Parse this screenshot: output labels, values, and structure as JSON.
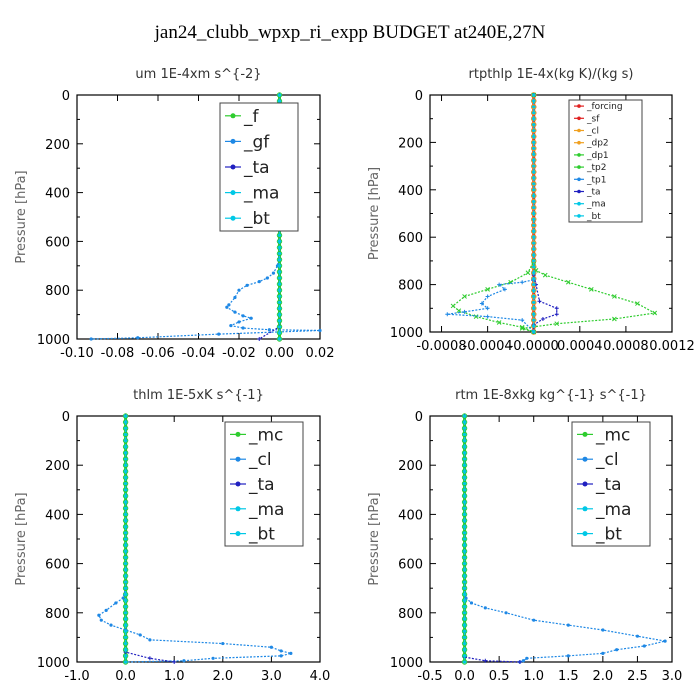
{
  "figure": {
    "title": "jan24_clubb_wpxp_ri_expp  BUDGET at240E,27N"
  },
  "colors": {
    "green": "#2ecc2e",
    "blue": "#1e88e5",
    "navy": "#2020c0",
    "cyan": "#00c8e6",
    "red": "#e02020",
    "orange": "#f0a020",
    "frame": "#000000"
  },
  "chart_data": [
    {
      "type": "line",
      "title": "um  1E-4xm s^{-2}",
      "ylabel": "Pressure [hPa]",
      "ylim": [
        1000,
        0
      ],
      "xlim": [
        -0.1,
        0.02
      ],
      "xticks": [
        "-0.10",
        "-0.08",
        "-0.06",
        "-0.04",
        "-0.02",
        "0.00",
        "0.02"
      ],
      "yticks": [
        "0",
        "200",
        "400",
        "600",
        "800",
        "1000"
      ],
      "legend": {
        "placement": "top-right",
        "entries": [
          "_f",
          "_gf",
          "_ta",
          "_ma",
          "_bt"
        ]
      },
      "series": [
        {
          "name": "_f",
          "color": "#2ecc2e",
          "points": [
            [
              0,
              0
            ],
            [
              0,
              1000
            ]
          ]
        },
        {
          "name": "_gf",
          "color": "#1e88e5",
          "points": [
            [
              0.0,
              0
            ],
            [
              0.0,
              150
            ],
            [
              0.0,
              300
            ],
            [
              0.0,
              450
            ],
            [
              0.0,
              550
            ],
            [
              0.0,
              600
            ],
            [
              0.0,
              650
            ],
            [
              -0.001,
              700
            ],
            [
              -0.003,
              730
            ],
            [
              -0.006,
              750
            ],
            [
              -0.01,
              765
            ],
            [
              -0.016,
              780
            ],
            [
              -0.02,
              800
            ],
            [
              -0.022,
              830
            ],
            [
              -0.025,
              860
            ],
            [
              -0.026,
              870
            ],
            [
              -0.022,
              890
            ],
            [
              -0.018,
              905
            ],
            [
              -0.014,
              915
            ],
            [
              -0.02,
              930
            ],
            [
              -0.024,
              945
            ],
            [
              -0.018,
              955
            ],
            [
              -0.005,
              962
            ],
            [
              0.02,
              965
            ],
            [
              -0.03,
              980
            ],
            [
              -0.07,
              995
            ],
            [
              -0.093,
              1000
            ]
          ]
        },
        {
          "name": "_ta",
          "color": "#2020c0",
          "points": [
            [
              0,
              0
            ],
            [
              0,
              950
            ],
            [
              -0.01,
              1000
            ]
          ]
        },
        {
          "name": "_ma",
          "color": "#00c8e6",
          "points": [
            [
              0,
              0
            ],
            [
              0,
              1000
            ]
          ]
        },
        {
          "name": "_bt",
          "color": "#00c8e6",
          "points": [
            [
              0,
              0
            ],
            [
              0,
              1000
            ]
          ]
        }
      ]
    },
    {
      "type": "line",
      "title": "rtpthlp  1E-4x(kg K)/(kg s)",
      "ylabel": "Pressure [hPa]",
      "ylim": [
        1000,
        0
      ],
      "xlim": [
        -0.0009,
        0.0012
      ],
      "xticks": [
        "-0.0008",
        "-0.0004",
        "-0.0000",
        "0.0004",
        "0.0008",
        "0.0012"
      ],
      "xtick_values": [
        -0.0008,
        -0.0004,
        0,
        0.0004,
        0.0008,
        0.0012
      ],
      "yticks": [
        "0",
        "200",
        "400",
        "600",
        "800",
        "1000"
      ],
      "legend": {
        "placement": "top-right",
        "entries": [
          "_forcing",
          "_sf",
          "_cl",
          "_dp2",
          "_dp1",
          "_tp2",
          "_tp1",
          "_ta",
          "_ma",
          "_bt"
        ]
      },
      "series": [
        {
          "name": "_forcing",
          "color": "#e02020",
          "points": [
            [
              0,
              0
            ],
            [
              0,
              1000
            ]
          ]
        },
        {
          "name": "_sf",
          "color": "#e02020",
          "points": [
            [
              0,
              0
            ],
            [
              0,
              1000
            ]
          ]
        },
        {
          "name": "_cl",
          "color": "#f0a020",
          "points": [
            [
              0,
              0
            ],
            [
              0,
              1000
            ]
          ]
        },
        {
          "name": "_dp2",
          "color": "#f0a020",
          "points": [
            [
              0,
              0
            ],
            [
              0,
              1000
            ]
          ]
        },
        {
          "name": "_dp1",
          "color": "#2ecc2e",
          "points": [
            [
              0,
              0
            ],
            [
              0,
              720
            ],
            [
              2e-05,
              740
            ],
            [
              0.0001,
              760
            ],
            [
              0.0003,
              790
            ],
            [
              0.0005,
              820
            ],
            [
              0.0007,
              850
            ],
            [
              0.0009,
              880
            ],
            [
              0.00105,
              920
            ],
            [
              0.0007,
              945
            ],
            [
              0.0002,
              965
            ],
            [
              -0.0001,
              985
            ],
            [
              0,
              1000
            ]
          ]
        },
        {
          "name": "_tp2",
          "color": "#2ecc2e",
          "points": [
            [
              0,
              0
            ],
            [
              0,
              700
            ],
            [
              -5e-05,
              750
            ],
            [
              -0.0002,
              790
            ],
            [
              -0.0004,
              820
            ],
            [
              -0.0006,
              850
            ],
            [
              -0.0007,
              890
            ],
            [
              -0.00065,
              910
            ],
            [
              -0.0005,
              935
            ],
            [
              -0.0003,
              960
            ],
            [
              -0.0001,
              980
            ],
            [
              0,
              1000
            ]
          ]
        },
        {
          "name": "_tp1",
          "color": "#1e88e5",
          "points": [
            [
              0,
              0
            ],
            [
              0,
              780
            ],
            [
              -0.0001,
              790
            ],
            [
              -0.0003,
              800
            ],
            [
              -0.00025,
              820
            ],
            [
              -0.0004,
              850
            ],
            [
              -0.00045,
              880
            ],
            [
              -0.0004,
              900
            ],
            [
              -0.0006,
              915
            ],
            [
              -0.00075,
              925
            ],
            [
              -0.0004,
              935
            ],
            [
              -0.0001,
              950
            ],
            [
              0,
              1000
            ]
          ]
        },
        {
          "name": "_ta",
          "color": "#2020c0",
          "points": [
            [
              0,
              0
            ],
            [
              0,
              760
            ],
            [
              2e-05,
              800
            ],
            [
              5e-05,
              870
            ],
            [
              0.0002,
              900
            ],
            [
              0.0002,
              925
            ],
            [
              8e-05,
              945
            ],
            [
              0,
              970
            ],
            [
              0,
              1000
            ]
          ]
        },
        {
          "name": "_ma",
          "color": "#00c8e6",
          "points": [
            [
              0,
              0
            ],
            [
              0,
              1000
            ]
          ]
        },
        {
          "name": "_bt",
          "color": "#00c8e6",
          "points": [
            [
              0,
              0
            ],
            [
              0,
              1000
            ]
          ]
        }
      ]
    },
    {
      "type": "line",
      "title": "thlm  1E-5xK s^{-1}",
      "ylabel": "Pressure [hPa]",
      "ylim": [
        1000,
        0
      ],
      "xlim": [
        -1.0,
        4.0
      ],
      "xticks": [
        "-1.0",
        "0.0",
        "1.0",
        "2.0",
        "3.0",
        "4.0"
      ],
      "yticks": [
        "0",
        "200",
        "400",
        "600",
        "800",
        "1000"
      ],
      "legend": {
        "placement": "top-right",
        "entries": [
          "_mc",
          "_cl",
          "_ta",
          "_ma",
          "_bt"
        ]
      },
      "series": [
        {
          "name": "_mc",
          "color": "#2ecc2e",
          "points": [
            [
              0,
              0
            ],
            [
              0,
              1000
            ]
          ]
        },
        {
          "name": "_cl",
          "color": "#1e88e5",
          "points": [
            [
              0,
              0
            ],
            [
              0,
              700
            ],
            [
              -0.05,
              740
            ],
            [
              -0.2,
              760
            ],
            [
              -0.4,
              790
            ],
            [
              -0.55,
              810
            ],
            [
              -0.5,
              830
            ],
            [
              -0.3,
              850
            ],
            [
              0.0,
              870
            ],
            [
              0.3,
              890
            ],
            [
              0.5,
              910
            ],
            [
              2.0,
              925
            ],
            [
              3.0,
              940
            ],
            [
              3.2,
              955
            ],
            [
              3.4,
              965
            ],
            [
              3.2,
              975
            ],
            [
              1.8,
              985
            ],
            [
              1.2,
              995
            ],
            [
              0.0,
              1000
            ]
          ]
        },
        {
          "name": "_ta",
          "color": "#2020c0",
          "points": [
            [
              0,
              0
            ],
            [
              0,
              960
            ],
            [
              0.5,
              985
            ],
            [
              1.0,
              1000
            ]
          ]
        },
        {
          "name": "_ma",
          "color": "#00c8e6",
          "points": [
            [
              0,
              0
            ],
            [
              0,
              1000
            ]
          ]
        },
        {
          "name": "_bt",
          "color": "#00c8e6",
          "points": [
            [
              0,
              0
            ],
            [
              0,
              1000
            ]
          ]
        }
      ]
    },
    {
      "type": "line",
      "title": "rtm  1E-8xkg kg^{-1} s^{-1}",
      "ylabel": "Pressure [hPa]",
      "ylim": [
        1000,
        0
      ],
      "xlim": [
        -0.5,
        3.0
      ],
      "xticks": [
        "-0.5",
        "0.0",
        "0.5",
        "1.0",
        "1.5",
        "2.0",
        "2.5",
        "3.0"
      ],
      "yticks": [
        "0",
        "200",
        "400",
        "600",
        "800",
        "1000"
      ],
      "legend": {
        "placement": "top-right",
        "entries": [
          "_mc",
          "_cl",
          "_ta",
          "_ma",
          "_bt"
        ]
      },
      "series": [
        {
          "name": "_mc",
          "color": "#2ecc2e",
          "points": [
            [
              0,
              0
            ],
            [
              0,
              1000
            ]
          ]
        },
        {
          "name": "_cl",
          "color": "#1e88e5",
          "points": [
            [
              0,
              0
            ],
            [
              0,
              700
            ],
            [
              0.02,
              740
            ],
            [
              0.1,
              760
            ],
            [
              0.3,
              780
            ],
            [
              0.6,
              800
            ],
            [
              1.0,
              830
            ],
            [
              1.5,
              850
            ],
            [
              2.0,
              870
            ],
            [
              2.5,
              895
            ],
            [
              2.9,
              915
            ],
            [
              2.6,
              935
            ],
            [
              2.2,
              950
            ],
            [
              2.0,
              965
            ],
            [
              1.5,
              975
            ],
            [
              0.9,
              985
            ],
            [
              0.85,
              995
            ],
            [
              0.8,
              1000
            ]
          ]
        },
        {
          "name": "_ta",
          "color": "#2020c0",
          "points": [
            [
              0,
              0
            ],
            [
              0,
              980
            ],
            [
              0.3,
              995
            ],
            [
              0.8,
              1000
            ]
          ]
        },
        {
          "name": "_ma",
          "color": "#00c8e6",
          "points": [
            [
              0,
              0
            ],
            [
              0,
              1000
            ]
          ]
        },
        {
          "name": "_bt",
          "color": "#00c8e6",
          "points": [
            [
              0,
              0
            ],
            [
              0,
              1000
            ]
          ]
        }
      ]
    }
  ]
}
